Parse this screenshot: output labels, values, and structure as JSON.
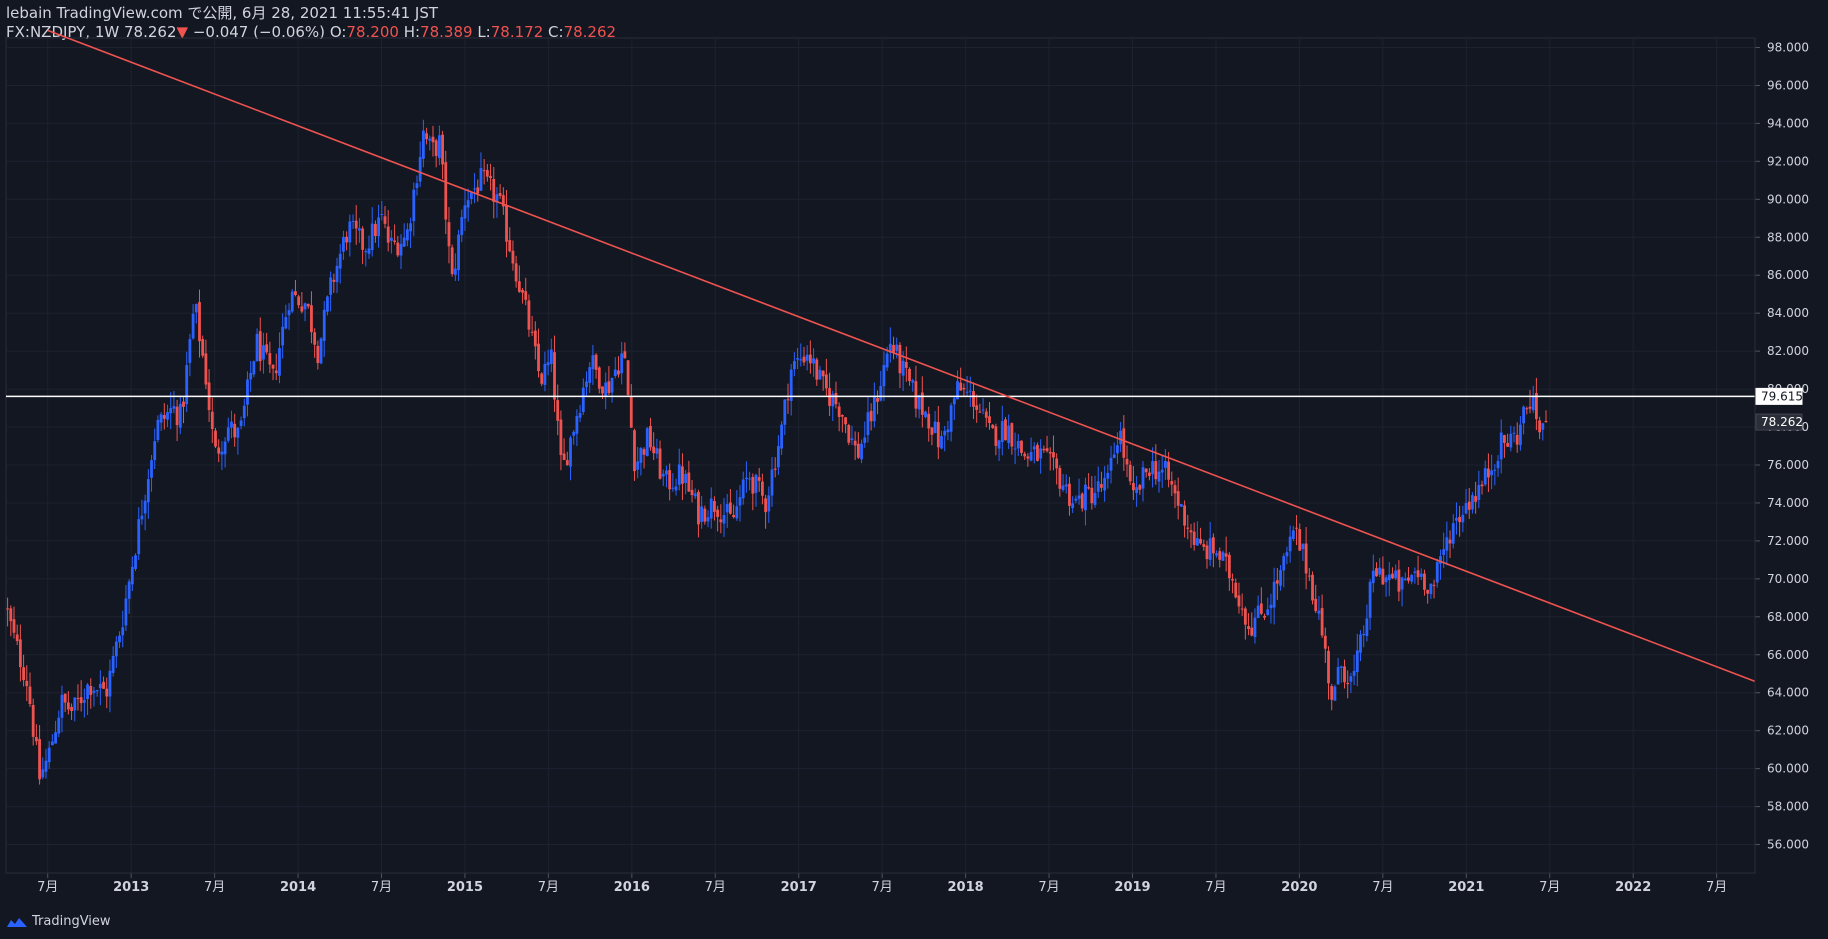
{
  "header": {
    "line1": "lebain TradingView.com で公開, 6月 28, 2021 11:55:41 JST",
    "symbol": "FX:NZDJPY, 1W",
    "last": "78.262",
    "change": "−0.047 (−0.06%)",
    "o_label": "O:",
    "o_value": "78.200",
    "h_label": "H:",
    "h_value": "78.389",
    "l_label": "L:",
    "l_value": "78.172",
    "c_label": "C:",
    "c_value": "78.262"
  },
  "footer": {
    "brand": "TradingView"
  },
  "colors": {
    "bg": "#131722",
    "up": "#2962ff",
    "down": "#ef5350",
    "text": "#d1d4dc",
    "grid": "#1e2230",
    "trend": "#ef5350",
    "hline": "#ffffff"
  },
  "chart_data": {
    "type": "candlestick",
    "symbol": "FX:NZDJPY",
    "interval": "1W",
    "ylim": [
      54.5,
      98.5
    ],
    "y_ticks": [
      56,
      58,
      60,
      62,
      64,
      66,
      68,
      70,
      72,
      74,
      76,
      78,
      80,
      82,
      84,
      86,
      88,
      90,
      92,
      94,
      96,
      98
    ],
    "x_range": [
      2012.25,
      2022.73
    ],
    "x_ticks": [
      {
        "t": 2012.5,
        "label": "7月"
      },
      {
        "t": 2013.0,
        "label": "2013"
      },
      {
        "t": 2013.5,
        "label": "7月"
      },
      {
        "t": 2014.0,
        "label": "2014"
      },
      {
        "t": 2014.5,
        "label": "7月"
      },
      {
        "t": 2015.0,
        "label": "2015"
      },
      {
        "t": 2015.5,
        "label": "7月"
      },
      {
        "t": 2016.0,
        "label": "2016"
      },
      {
        "t": 2016.5,
        "label": "7月"
      },
      {
        "t": 2017.0,
        "label": "2017"
      },
      {
        "t": 2017.5,
        "label": "7月"
      },
      {
        "t": 2018.0,
        "label": "2018"
      },
      {
        "t": 2018.5,
        "label": "7月"
      },
      {
        "t": 2019.0,
        "label": "2019"
      },
      {
        "t": 2019.5,
        "label": "7月"
      },
      {
        "t": 2020.0,
        "label": "2020"
      },
      {
        "t": 2020.5,
        "label": "7月"
      },
      {
        "t": 2021.0,
        "label": "2021"
      },
      {
        "t": 2021.5,
        "label": "7月"
      },
      {
        "t": 2022.0,
        "label": "2022"
      },
      {
        "t": 2022.5,
        "label": "7月"
      }
    ],
    "close_path": [
      [
        2012.25,
        68.5
      ],
      [
        2012.3,
        66.8
      ],
      [
        2012.38,
        64.5
      ],
      [
        2012.45,
        59.5
      ],
      [
        2012.5,
        60.5
      ],
      [
        2012.58,
        63.5
      ],
      [
        2012.65,
        63.0
      ],
      [
        2012.75,
        64.5
      ],
      [
        2012.85,
        64.0
      ],
      [
        2012.95,
        68.0
      ],
      [
        2013.05,
        73.0
      ],
      [
        2013.15,
        78.0
      ],
      [
        2013.25,
        79.0
      ],
      [
        2013.3,
        78.5
      ],
      [
        2013.38,
        84.5
      ],
      [
        2013.45,
        80.5
      ],
      [
        2013.5,
        76.5
      ],
      [
        2013.58,
        78.0
      ],
      [
        2013.65,
        77.5
      ],
      [
        2013.75,
        82.5
      ],
      [
        2013.85,
        80.5
      ],
      [
        2013.95,
        85.0
      ],
      [
        2014.05,
        84.5
      ],
      [
        2014.12,
        82.0
      ],
      [
        2014.2,
        85.5
      ],
      [
        2014.3,
        88.5
      ],
      [
        2014.4,
        87.5
      ],
      [
        2014.5,
        89.0
      ],
      [
        2014.55,
        87.5
      ],
      [
        2014.65,
        88.0
      ],
      [
        2014.75,
        93.5
      ],
      [
        2014.8,
        92.5
      ],
      [
        2014.85,
        93.0
      ],
      [
        2014.92,
        85.5
      ],
      [
        2015.0,
        90.0
      ],
      [
        2015.1,
        91.0
      ],
      [
        2015.2,
        90.0
      ],
      [
        2015.3,
        86.5
      ],
      [
        2015.38,
        83.5
      ],
      [
        2015.45,
        80.5
      ],
      [
        2015.52,
        81.5
      ],
      [
        2015.58,
        75.5
      ],
      [
        2015.65,
        78.0
      ],
      [
        2015.75,
        81.5
      ],
      [
        2015.85,
        80.0
      ],
      [
        2015.95,
        82.0
      ],
      [
        2016.02,
        76.0
      ],
      [
        2016.1,
        77.5
      ],
      [
        2016.2,
        75.0
      ],
      [
        2016.3,
        75.5
      ],
      [
        2016.4,
        73.5
      ],
      [
        2016.5,
        74.0
      ],
      [
        2016.6,
        73.0
      ],
      [
        2016.7,
        75.5
      ],
      [
        2016.8,
        74.0
      ],
      [
        2016.9,
        78.0
      ],
      [
        2016.95,
        81.0
      ],
      [
        2017.05,
        82.0
      ],
      [
        2017.15,
        80.0
      ],
      [
        2017.25,
        79.0
      ],
      [
        2017.35,
        76.5
      ],
      [
        2017.45,
        79.0
      ],
      [
        2017.55,
        82.5
      ],
      [
        2017.62,
        81.0
      ],
      [
        2017.7,
        79.5
      ],
      [
        2017.78,
        78.5
      ],
      [
        2017.85,
        77.0
      ],
      [
        2017.95,
        80.0
      ],
      [
        2018.05,
        79.5
      ],
      [
        2018.15,
        77.5
      ],
      [
        2018.25,
        78.0
      ],
      [
        2018.35,
        76.5
      ],
      [
        2018.45,
        76.5
      ],
      [
        2018.55,
        75.5
      ],
      [
        2018.65,
        74.0
      ],
      [
        2018.75,
        74.5
      ],
      [
        2018.85,
        75.0
      ],
      [
        2018.92,
        78.0
      ],
      [
        2019.0,
        74.0
      ],
      [
        2019.1,
        76.0
      ],
      [
        2019.2,
        75.5
      ],
      [
        2019.3,
        73.5
      ],
      [
        2019.4,
        71.5
      ],
      [
        2019.5,
        71.5
      ],
      [
        2019.6,
        70.0
      ],
      [
        2019.7,
        67.5
      ],
      [
        2019.8,
        68.5
      ],
      [
        2019.9,
        70.5
      ],
      [
        2019.97,
        72.5
      ],
      [
        2020.05,
        70.5
      ],
      [
        2020.12,
        68.0
      ],
      [
        2020.2,
        63.5
      ],
      [
        2020.25,
        65.5
      ],
      [
        2020.32,
        64.5
      ],
      [
        2020.38,
        67.0
      ],
      [
        2020.45,
        70.5
      ],
      [
        2020.55,
        70.0
      ],
      [
        2020.62,
        69.5
      ],
      [
        2020.7,
        70.5
      ],
      [
        2020.8,
        69.5
      ],
      [
        2020.9,
        72.5
      ],
      [
        2021.0,
        74.0
      ],
      [
        2021.1,
        75.0
      ],
      [
        2021.2,
        77.0
      ],
      [
        2021.3,
        77.5
      ],
      [
        2021.38,
        79.5
      ],
      [
        2021.44,
        78.0
      ],
      [
        2021.49,
        78.262
      ]
    ],
    "trendline": {
      "p1": [
        2012.5,
        98.9
      ],
      "p2": [
        2022.73,
        64.6
      ],
      "color": "#ef5350"
    },
    "horizontal_line": {
      "value": 79.615,
      "color": "#ffffff"
    },
    "price_labels": [
      {
        "value": 79.615,
        "text": "79.615",
        "style": "white"
      },
      {
        "value": 78.262,
        "text": "78.262",
        "style": "dark"
      }
    ],
    "last_close": 78.262
  }
}
